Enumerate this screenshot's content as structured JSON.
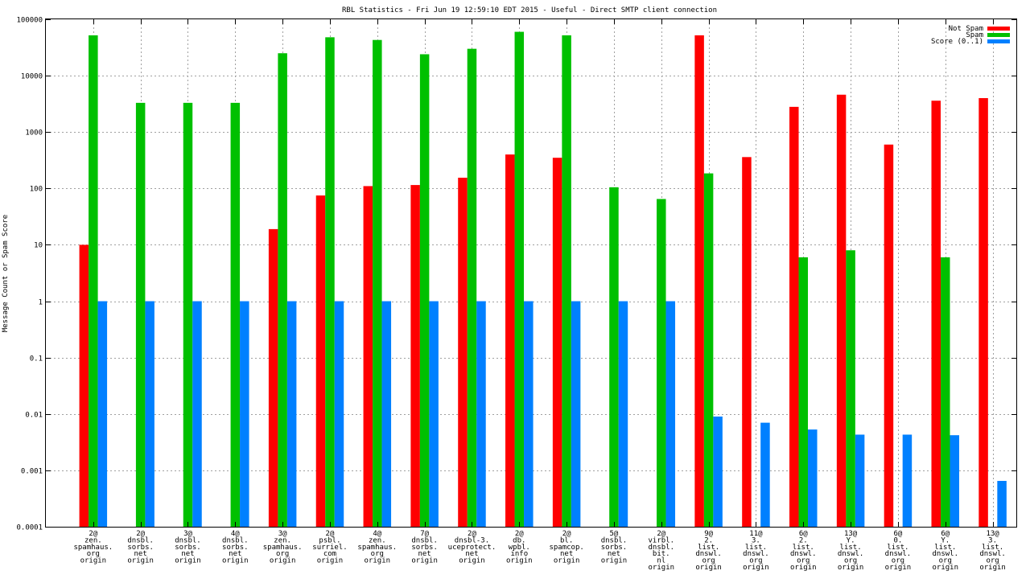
{
  "chart_data": {
    "type": "bar",
    "title": "RBL Statistics - Fri Jun 19 12:59:10 EDT 2015 - Useful - Direct SMTP client connection",
    "xlabel": "",
    "ylabel": "Message Count or Spam Score",
    "yscale": "log",
    "ylim": [
      0.0001,
      100000
    ],
    "yticks": [
      0.0001,
      0.001,
      0.01,
      0.1,
      1,
      10,
      100,
      1000,
      10000,
      100000
    ],
    "ytick_labels": [
      "0.0001",
      "0.001",
      "0.01",
      "0.1",
      "1",
      "10",
      "100",
      "1000",
      "10000",
      "100000"
    ],
    "grid": true,
    "legend_position": "top-right",
    "categories": [
      [
        "2@",
        "zen.",
        "spamhaus.",
        "org",
        "origin"
      ],
      [
        "2@",
        "dnsbl.",
        "sorbs.",
        "net",
        "origin"
      ],
      [
        "3@",
        "dnsbl.",
        "sorbs.",
        "net",
        "origin"
      ],
      [
        "4@",
        "dnsbl.",
        "sorbs.",
        "net",
        "origin"
      ],
      [
        "3@",
        "zen.",
        "spamhaus.",
        "org",
        "origin"
      ],
      [
        "2@",
        "psbl.",
        "surriel.",
        "com",
        "origin"
      ],
      [
        "4@",
        "zen.",
        "spamhaus.",
        "org",
        "origin"
      ],
      [
        "7@",
        "dnsbl.",
        "sorbs.",
        "net",
        "origin"
      ],
      [
        "2@",
        "dnsbl-3.",
        "uceprotect.",
        "net",
        "origin"
      ],
      [
        "2@",
        "db.",
        "wpbl.",
        "info",
        "origin"
      ],
      [
        "2@",
        "bl.",
        "spamcop.",
        "net",
        "origin"
      ],
      [
        "5@",
        "dnsbl.",
        "sorbs.",
        "net",
        "origin"
      ],
      [
        "2@",
        "virbl.",
        "dnsbl.",
        "bit.",
        "nl",
        "origin"
      ],
      [
        "9@",
        "2.",
        "list.",
        "dnswl.",
        "org",
        "origin"
      ],
      [
        "11@",
        "3.",
        "list.",
        "dnswl.",
        "org",
        "origin"
      ],
      [
        "6@",
        "2.",
        "list.",
        "dnswl.",
        "org",
        "origin"
      ],
      [
        "13@",
        "Y.",
        "list.",
        "dnswl.",
        "org",
        "origin"
      ],
      [
        "6@",
        "0.",
        "list.",
        "dnswl.",
        "org",
        "origin"
      ],
      [
        "6@",
        "Y.",
        "list.",
        "dnswl.",
        "org",
        "origin"
      ],
      [
        "13@",
        "3.",
        "list.",
        "dnswl.",
        "org",
        "origin"
      ]
    ],
    "series": [
      {
        "name": "Not Spam",
        "color": "#ff0000",
        "values": [
          10,
          null,
          null,
          null,
          19,
          75,
          110,
          115,
          155,
          400,
          350,
          null,
          null,
          52000,
          360,
          2800,
          4600,
          600,
          3600,
          4000
        ]
      },
      {
        "name": "Spam",
        "color": "#00c000",
        "values": [
          52000,
          3300,
          3300,
          3300,
          25000,
          48000,
          43000,
          24000,
          30000,
          60000,
          52000,
          105,
          65,
          185,
          null,
          6,
          8,
          null,
          6,
          null
        ]
      },
      {
        "name": "Score (0..1)",
        "color": "#0080ff",
        "values": [
          1,
          1,
          1,
          1,
          1,
          1,
          1,
          1,
          1,
          1,
          1,
          1,
          1,
          0.009,
          0.007,
          0.0053,
          0.0043,
          0.0043,
          0.0042,
          0.00065
        ]
      }
    ]
  }
}
